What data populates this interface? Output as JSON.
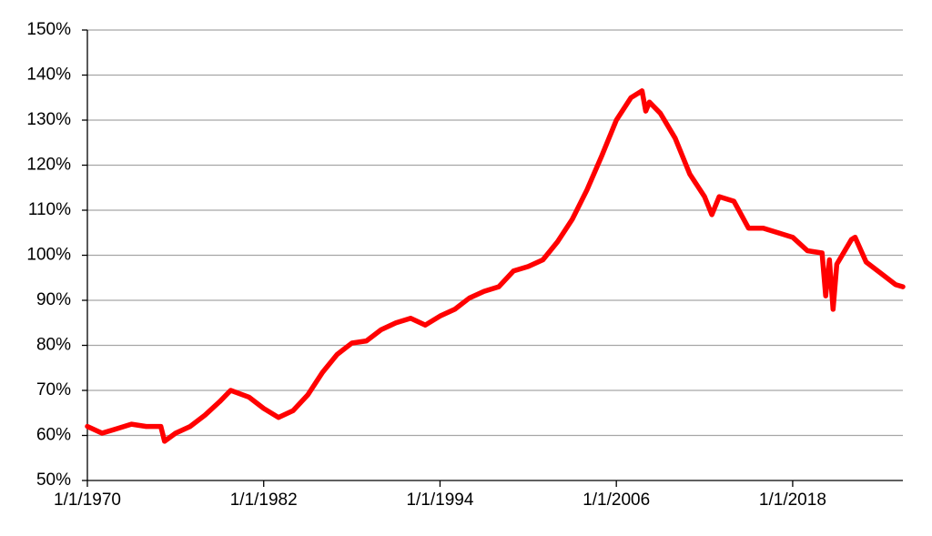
{
  "chart_data": {
    "type": "line",
    "x": [
      "1/1/1970",
      "1/1/1971",
      "1/1/1972",
      "1/1/1973",
      "1/1/1974",
      "1/1/1975",
      "4/1/1975",
      "1/1/1976",
      "1/1/1977",
      "1/1/1978",
      "1/1/1979",
      "10/1/1979",
      "1/1/1981",
      "1/1/1982",
      "1/1/1983",
      "1/1/1984",
      "1/1/1985",
      "1/1/1986",
      "1/1/1987",
      "1/1/1988",
      "1/1/1989",
      "1/1/1990",
      "1/1/1991",
      "1/1/1992",
      "1/1/1993",
      "1/1/1994",
      "1/1/1995",
      "1/1/1996",
      "1/1/1997",
      "1/1/1998",
      "1/1/1999",
      "1/1/2000",
      "1/1/2001",
      "1/1/2002",
      "1/1/2003",
      "1/1/2004",
      "1/1/2005",
      "1/1/2006",
      "1/1/2007",
      "10/1/2007",
      "1/1/2008",
      "4/1/2008",
      "1/1/2009",
      "1/1/2010",
      "1/1/2011",
      "1/1/2012",
      "7/1/2012",
      "1/1/2013",
      "1/1/2014",
      "1/1/2015",
      "1/1/2016",
      "1/1/2017",
      "1/1/2018",
      "1/1/2019",
      "1/1/2020",
      "4/1/2020",
      "7/1/2020",
      "10/1/2020",
      "1/1/2021",
      "1/1/2022",
      "4/1/2022",
      "1/1/2023",
      "1/1/2024",
      "1/1/2025",
      "7/1/2025"
    ],
    "series": [
      {
        "color": "#ff0000",
        "values": [
          62,
          60.5,
          61.5,
          62.5,
          62,
          62,
          58.7,
          60.5,
          62,
          64.5,
          67.5,
          70,
          68.5,
          66,
          64,
          65.5,
          69,
          74,
          78,
          80.5,
          81,
          83.5,
          85,
          86,
          84.5,
          86.5,
          88,
          90.5,
          92,
          93,
          96.5,
          97.5,
          99,
          103,
          108,
          114.5,
          122,
          130,
          135,
          136.5,
          132,
          134,
          131.5,
          126,
          118,
          113,
          109,
          113,
          112,
          106,
          106,
          105,
          104,
          101,
          100.5,
          91,
          99,
          88,
          98,
          103.5,
          104,
          98.5,
          96,
          93.5,
          93
        ]
      }
    ],
    "xlim": [
      "1/1/1970",
      "7/1/2025"
    ],
    "xticks": [
      "1/1/1970",
      "1/1/1982",
      "1/1/1994",
      "1/1/2006",
      "1/1/2018"
    ],
    "ylim": [
      50,
      150
    ],
    "yticks": [
      {
        "value": 50,
        "label": "50%"
      },
      {
        "value": 60,
        "label": "60%"
      },
      {
        "value": 70,
        "label": "70%"
      },
      {
        "value": 80,
        "label": "80%"
      },
      {
        "value": 90,
        "label": "90%"
      },
      {
        "value": 100,
        "label": "100%"
      },
      {
        "value": 110,
        "label": "110%"
      },
      {
        "value": 120,
        "label": "120%"
      },
      {
        "value": 130,
        "label": "130%"
      },
      {
        "value": 140,
        "label": "140%"
      },
      {
        "value": 150,
        "label": "150%"
      }
    ],
    "grid": true
  }
}
